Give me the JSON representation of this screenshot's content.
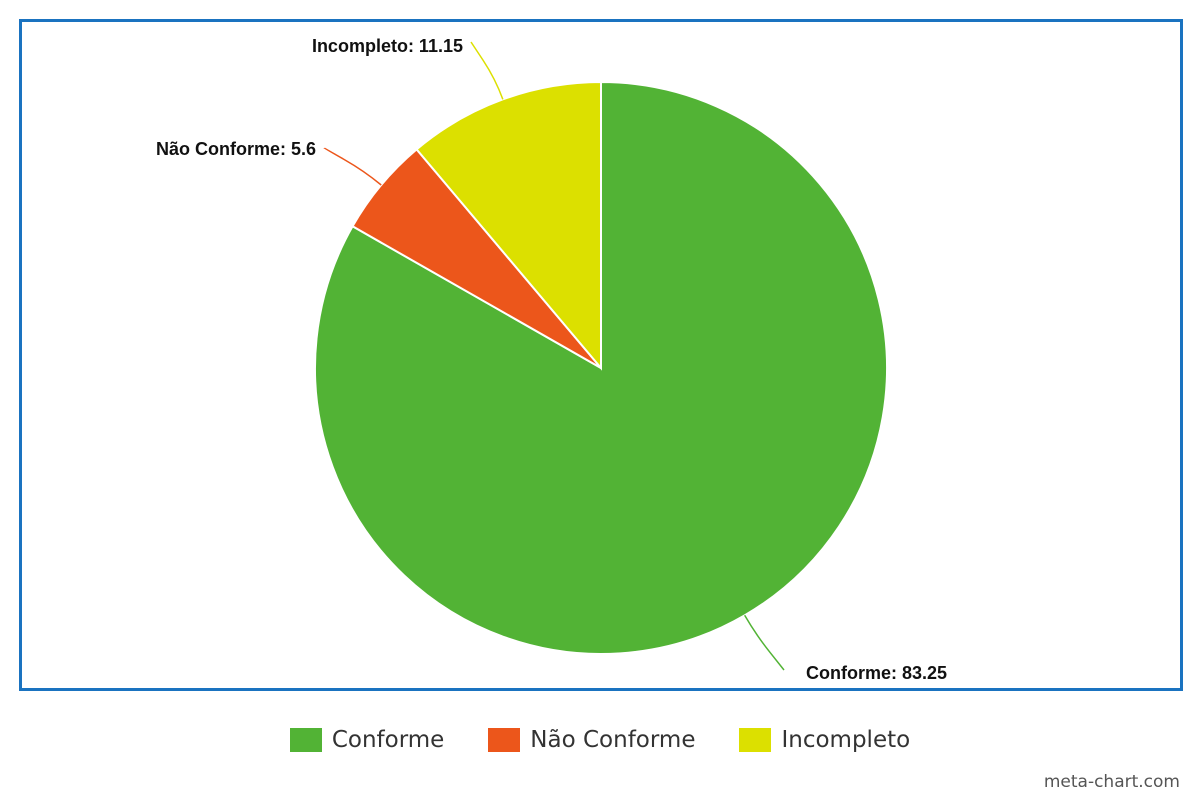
{
  "chart_data": {
    "type": "pie",
    "categories": [
      "Conforme",
      "Não Conforme",
      "Incompleto"
    ],
    "values": [
      83.25,
      5.6,
      11.15
    ],
    "colors": [
      "#52b335",
      "#ec561b",
      "#dce000"
    ],
    "slice_labels": [
      "Conforme: 83.25",
      "Não Conforme: 5.6",
      "Incompleto: 11.15"
    ],
    "start_angle_deg": 0,
    "direction": "clockwise",
    "slice_border_color": "#ffffff",
    "legend_position": "bottom",
    "title": ""
  },
  "frame": {
    "border_color": "#1a73c0"
  },
  "legend": {
    "items": [
      {
        "label": "Conforme",
        "color": "#52b335"
      },
      {
        "label": "Não Conforme",
        "color": "#ec561b"
      },
      {
        "label": "Incompleto",
        "color": "#dce000"
      }
    ]
  },
  "credit": "meta-chart.com"
}
